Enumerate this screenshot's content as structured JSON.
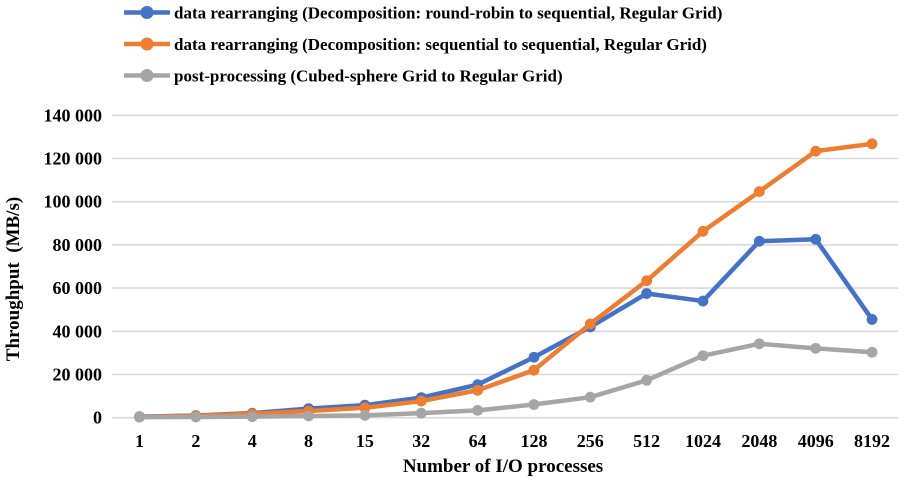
{
  "chart_data": {
    "type": "line",
    "title": "",
    "xlabel": "Number of I/O processes",
    "ylabel": "Throughput  (MB/s)",
    "categories": [
      "1",
      "2",
      "4",
      "8",
      "15",
      "32",
      "64",
      "128",
      "256",
      "512",
      "1024",
      "2048",
      "4096",
      "8192"
    ],
    "y_ticks": [
      {
        "label": "0",
        "value": 0
      },
      {
        "label": "20 000",
        "value": 20000
      },
      {
        "label": "40 000",
        "value": 40000
      },
      {
        "label": "60 000",
        "value": 60000
      },
      {
        "label": "80 000",
        "value": 80000
      },
      {
        "label": "100 000",
        "value": 100000
      },
      {
        "label": "120 000",
        "value": 120000
      },
      {
        "label": "140 000",
        "value": 140000
      }
    ],
    "ylim": [
      0,
      140000
    ],
    "grid": true,
    "legend_position": "top-left",
    "marker": "circle",
    "series": [
      {
        "name": "data rearranging (Decomposition: round-robin to sequential, Regular Grid)",
        "color": "#4472C4",
        "values": [
          500,
          1000,
          2100,
          4200,
          5800,
          9300,
          15300,
          28000,
          42000,
          57500,
          54000,
          81700,
          82600,
          45500
        ]
      },
      {
        "name": "data rearranging (Decomposition: sequential to sequential, Regular Grid)",
        "color": "#ED7D31",
        "values": [
          400,
          900,
          1800,
          3100,
          4600,
          7700,
          12700,
          22000,
          43400,
          63400,
          86300,
          104700,
          123400,
          126800
        ]
      },
      {
        "name": "post-processing (Cubed-sphere Grid to Regular Grid)",
        "color": "#A5A5A5",
        "values": [
          250,
          350,
          500,
          800,
          1100,
          2100,
          3400,
          6100,
          9500,
          17300,
          28700,
          34200,
          32100,
          30300
        ]
      }
    ]
  }
}
